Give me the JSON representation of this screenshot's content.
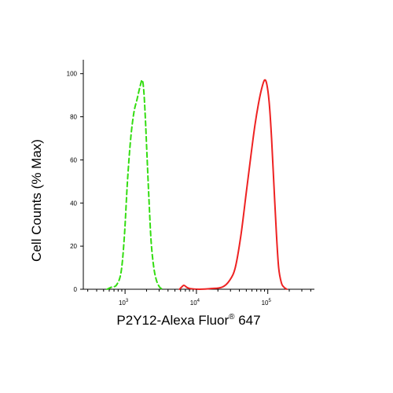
{
  "chart_data": {
    "type": "line",
    "title": "",
    "xlabel": "P2Y12-Alexa Fluor",
    "xlabel_sup": "®",
    "xlabel_suffix": " 647",
    "ylabel": "Cell Counts (% Max)",
    "x_scale": "log",
    "xlim": [
      260,
      450000
    ],
    "ylim": [
      0,
      105
    ],
    "y_ticks": [
      0,
      20,
      40,
      60,
      80,
      100
    ],
    "x_tick_labels": [
      {
        "base": "10",
        "exp": "3",
        "value": 1000
      },
      {
        "base": "10",
        "exp": "4",
        "value": 10000
      },
      {
        "base": "10",
        "exp": "5",
        "value": 100000
      }
    ],
    "grid": false,
    "legend": "none",
    "series": [
      {
        "color": "#33dd11",
        "style": "dashed",
        "points": [
          [
            560,
            0
          ],
          [
            650,
            1
          ],
          [
            760,
            2
          ],
          [
            880,
            8
          ],
          [
            980,
            25
          ],
          [
            1080,
            50
          ],
          [
            1200,
            70
          ],
          [
            1330,
            82
          ],
          [
            1470,
            88
          ],
          [
            1620,
            94
          ],
          [
            1740,
            97
          ],
          [
            1830,
            92
          ],
          [
            1920,
            80
          ],
          [
            2030,
            62
          ],
          [
            2160,
            42
          ],
          [
            2320,
            22
          ],
          [
            2530,
            10
          ],
          [
            2760,
            4
          ],
          [
            3050,
            1
          ],
          [
            3350,
            0
          ]
        ]
      },
      {
        "color": "#ee2222",
        "style": "solid",
        "points": [
          [
            5800,
            0
          ],
          [
            6200,
            1
          ],
          [
            6700,
            1.8
          ],
          [
            7400,
            0.8
          ],
          [
            8200,
            0.3
          ],
          [
            11000,
            0
          ],
          [
            16000,
            0.3
          ],
          [
            23000,
            1
          ],
          [
            29000,
            4
          ],
          [
            35000,
            10
          ],
          [
            42000,
            25
          ],
          [
            50000,
            45
          ],
          [
            58000,
            62
          ],
          [
            66000,
            76
          ],
          [
            74000,
            86
          ],
          [
            82000,
            93
          ],
          [
            90000,
            97
          ],
          [
            97000,
            95
          ],
          [
            105000,
            86
          ],
          [
            113000,
            70
          ],
          [
            122000,
            48
          ],
          [
            132000,
            26
          ],
          [
            142000,
            10
          ],
          [
            155000,
            3
          ],
          [
            168000,
            1
          ],
          [
            185000,
            0
          ]
        ]
      }
    ]
  }
}
